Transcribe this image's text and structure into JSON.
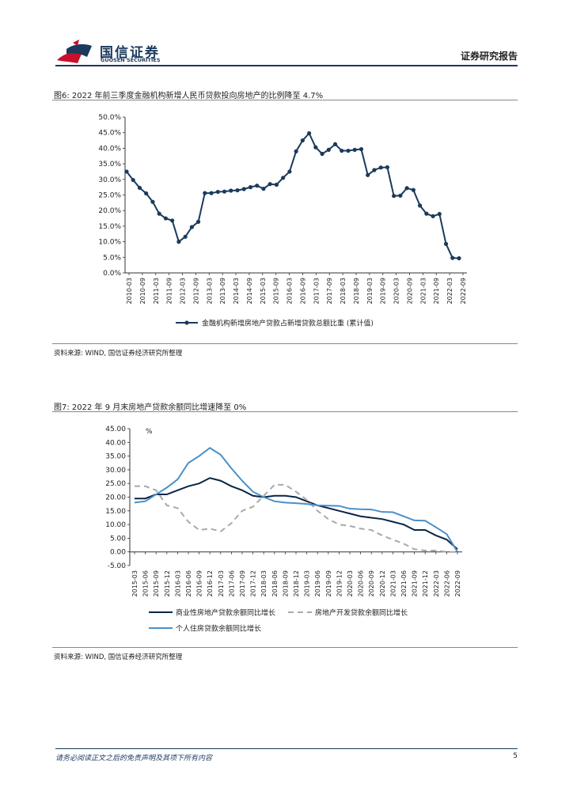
{
  "header": {
    "logo_cn": "国信证券",
    "logo_en": "GUOSEN SECURITIES",
    "section": "证券研究报告",
    "brand_color": "#c8102e"
  },
  "fig6": {
    "title": "图6: 2022 年前三季度金融机构新增人民币贷款投向房地产的比例降至 4.7%",
    "source": "资料来源: WIND, 国信证券经济研究所整理",
    "chart_data": {
      "type": "line",
      "title": "",
      "ylim": [
        0,
        50
      ],
      "yticks": [
        "0.0%",
        "5.0%",
        "10.0%",
        "15.0%",
        "20.0%",
        "25.0%",
        "30.0%",
        "35.0%",
        "40.0%",
        "45.0%",
        "50.0%"
      ],
      "x_labels": [
        "2010-03",
        "2010-09",
        "2011-03",
        "2011-09",
        "2012-03",
        "2012-09",
        "2013-03",
        "2013-09",
        "2014-03",
        "2014-09",
        "2015-03",
        "2015-09",
        "2016-03",
        "2016-09",
        "2017-03",
        "2017-09",
        "2018-03",
        "2018-09",
        "2019-03",
        "2019-09",
        "2020-03",
        "2020-09",
        "2021-03",
        "2021-09",
        "2022-03",
        "2022-09"
      ],
      "series": [
        {
          "name": "金融机构新增房地产贷款占新增贷款总额比重 (累计值)",
          "color": "#1b3a5c",
          "values": [
            32.5,
            29.8,
            27.3,
            25.5,
            22.8,
            19.0,
            17.5,
            16.8,
            10.0,
            11.6,
            14.7,
            16.4,
            25.6,
            25.6,
            26.0,
            26.1,
            26.4,
            26.5,
            26.9,
            27.5,
            28.0,
            27.0,
            28.5,
            28.3,
            30.5,
            32.5,
            39.0,
            42.5,
            44.8,
            40.3,
            38.2,
            39.5,
            41.3,
            39.2,
            39.2,
            39.5,
            39.7,
            31.4,
            33.0,
            33.8,
            33.9,
            24.7,
            24.8,
            27.2,
            26.6,
            21.6,
            19.0,
            18.2,
            18.9,
            9.3,
            4.8,
            4.7
          ]
        }
      ]
    }
  },
  "fig7": {
    "title": "图7: 2022 年 9 月末房地产贷款余额同比增速降至 0%",
    "source": "资料来源: WIND, 国信证券经济研究所整理",
    "chart_data": {
      "type": "line",
      "ylabel": "%",
      "ylim": [
        -5,
        45
      ],
      "yticks": [
        "-5.00",
        "0.00",
        "5.00",
        "10.00",
        "15.00",
        "20.00",
        "25.00",
        "30.00",
        "35.00",
        "40.00",
        "45.00"
      ],
      "x_labels": [
        "2015-03",
        "2015-06",
        "2015-09",
        "2015-12",
        "2016-03",
        "2016-06",
        "2016-09",
        "2016-12",
        "2017-03",
        "2017-06",
        "2017-09",
        "2017-12",
        "2018-03",
        "2018-06",
        "2018-09",
        "2018-12",
        "2019-03",
        "2019-06",
        "2019-09",
        "2019-12",
        "2020-03",
        "2020-06",
        "2020-09",
        "2020-12",
        "2021-03",
        "2021-06",
        "2021-09",
        "2021-12",
        "2022-03",
        "2022-06",
        "2022-09"
      ],
      "series": [
        {
          "name": "商业性房地产贷款余额同比增长",
          "color": "#0b2545",
          "dash": false,
          "values": [
            19.5,
            19.5,
            21.0,
            21.0,
            22.5,
            24.0,
            25.0,
            27.0,
            26.0,
            24.0,
            22.5,
            20.5,
            20.0,
            20.5,
            20.5,
            20.0,
            18.5,
            17.0,
            16.0,
            15.0,
            14.0,
            13.0,
            12.5,
            12.0,
            11.0,
            10.0,
            8.0,
            8.0,
            6.0,
            4.5,
            1.0
          ]
        },
        {
          "name": "房地产开发贷款余额同比增长",
          "color": "#a9a9a9",
          "dash": true,
          "values": [
            24.0,
            24.0,
            22.5,
            17.0,
            16.0,
            11.0,
            8.0,
            8.5,
            7.5,
            10.5,
            15.0,
            16.5,
            20.5,
            24.5,
            24.5,
            22.0,
            19.0,
            15.0,
            12.0,
            10.0,
            9.5,
            8.5,
            8.0,
            6.0,
            4.5,
            3.0,
            1.0,
            0.5,
            0.5,
            0.0,
            0.0
          ]
        },
        {
          "name": "个人住房贷款余额同比增长",
          "color": "#4a90c8",
          "dash": false,
          "values": [
            18.0,
            18.5,
            21.0,
            23.5,
            26.5,
            32.5,
            35.0,
            38.0,
            35.5,
            30.5,
            26.0,
            22.0,
            20.0,
            18.5,
            18.0,
            17.8,
            17.5,
            17.0,
            16.9,
            16.8,
            15.8,
            15.6,
            15.5,
            14.6,
            14.5,
            13.0,
            11.5,
            11.4,
            9.0,
            6.5,
            0.0
          ]
        }
      ]
    }
  },
  "footer": {
    "disclaimer": "请务必阅读正文之后的免责声明及其项下所有内容",
    "page": "5"
  }
}
